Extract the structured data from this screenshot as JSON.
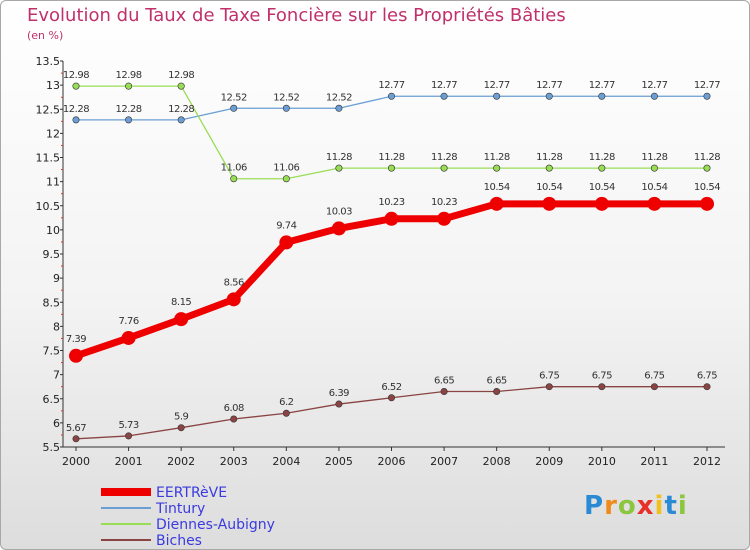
{
  "header": {
    "title": "Evolution du Taux de Taxe Foncière sur les Propriétés Bâties",
    "unit": "(en %)"
  },
  "logo": {
    "text": "Proxiti",
    "letters": [
      "P",
      "r",
      "o",
      "x",
      "i",
      "t",
      "i"
    ],
    "colors": [
      "#2a8ad4",
      "#f08a1a",
      "#8cc63f",
      "#e8302a",
      "#f0c020",
      "#2a8ad4",
      "#8cc63f"
    ]
  },
  "chart_data": {
    "type": "line",
    "title": "Evolution du Taux de Taxe Foncière sur les Propriétés Bâties",
    "ylabel": "(en %)",
    "xlabel": "",
    "x": [
      "2000",
      "2001",
      "2002",
      "2003",
      "2004",
      "2005",
      "2006",
      "2007",
      "2008",
      "2009",
      "2010",
      "2011",
      "2012"
    ],
    "ylim": [
      5.5,
      13.5
    ],
    "yticks": [
      "5.5",
      "6",
      "6.5",
      "7",
      "7.5",
      "8",
      "8.5",
      "9",
      "9.5",
      "10",
      "10.5",
      "11",
      "11.5",
      "12",
      "12.5",
      "13",
      "13.5"
    ],
    "grid": false,
    "legend_position": "bottom-left",
    "series": [
      {
        "name": "EERTRèVE",
        "color": "#ee0000",
        "width": 7,
        "marker": 7,
        "values": [
          7.39,
          7.76,
          8.15,
          8.56,
          9.74,
          10.03,
          10.23,
          10.23,
          10.54,
          10.54,
          10.54,
          10.54,
          10.54
        ],
        "labels": [
          "7.39",
          "7.76",
          "8.15",
          "8.56",
          "9.74",
          "10.03",
          "10.23",
          "10.23",
          "10.54",
          "10.54",
          "10.54",
          "10.54",
          "10.54"
        ]
      },
      {
        "name": "Tintury",
        "color": "#6b9ed4",
        "width": 1.3,
        "marker": 3.2,
        "values": [
          12.28,
          12.28,
          12.28,
          12.52,
          12.52,
          12.52,
          12.77,
          12.77,
          12.77,
          12.77,
          12.77,
          12.77,
          12.77
        ],
        "labels": [
          "12.28",
          "12.28",
          "12.28",
          "12.52",
          "12.52",
          "12.52",
          "12.77",
          "12.77",
          "12.77",
          "12.77",
          "12.77",
          "12.77",
          "12.77"
        ]
      },
      {
        "name": "Diennes-Aubigny",
        "color": "#99dd55",
        "width": 1.3,
        "marker": 3.2,
        "values": [
          12.98,
          12.98,
          12.98,
          11.06,
          11.06,
          11.28,
          11.28,
          11.28,
          11.28,
          11.28,
          11.28,
          11.28,
          11.28
        ],
        "labels": [
          "12.98",
          "12.98",
          "12.98",
          "11.06",
          "11.06",
          "11.28",
          "11.28",
          "11.28",
          "11.28",
          "11.28",
          "11.28",
          "11.28",
          "11.28"
        ]
      },
      {
        "name": "Biches",
        "color": "#8a4444",
        "width": 1.3,
        "marker": 3.2,
        "values": [
          5.67,
          5.73,
          5.9,
          6.08,
          6.2,
          6.39,
          6.52,
          6.65,
          6.65,
          6.75,
          6.75,
          6.75,
          6.75
        ],
        "labels": [
          "5.67",
          "5.73",
          "5.9",
          "6.08",
          "6.2",
          "6.39",
          "6.52",
          "6.65",
          "6.65",
          "6.75",
          "6.75",
          "6.75",
          "6.75"
        ]
      }
    ]
  }
}
